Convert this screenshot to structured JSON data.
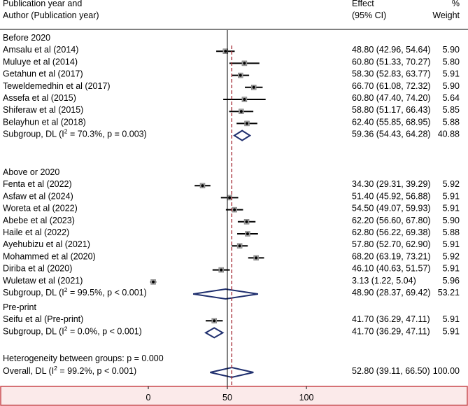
{
  "chart_data": {
    "type": "forest",
    "header": {
      "study_line1": "Publication year and",
      "study_line2": "Author (Publication year)",
      "effect_line1": "Effect",
      "effect_line2": "(95% CI)",
      "weight_line1": "%",
      "weight_line2": "Weight"
    },
    "xaxis": {
      "ticks": [
        0,
        50,
        100
      ],
      "null_line": 50,
      "overall_line": 52.8
    },
    "groups": [
      {
        "name": "Before 2020",
        "studies": [
          {
            "label": "Amsalu et al (2014)",
            "est": 48.8,
            "lo": 42.96,
            "hi": 54.64,
            "ci_text": "48.80 (42.96, 54.64)",
            "weight": "5.90"
          },
          {
            "label": "Muluye et al (2014)",
            "est": 60.8,
            "lo": 51.33,
            "hi": 70.27,
            "ci_text": "60.80 (51.33, 70.27)",
            "weight": "5.80"
          },
          {
            "label": "Getahun et al (2017)",
            "est": 58.3,
            "lo": 52.83,
            "hi": 63.77,
            "ci_text": "58.30 (52.83, 63.77)",
            "weight": "5.91"
          },
          {
            "label": "Teweldemedhin et al (2017)",
            "est": 66.7,
            "lo": 61.08,
            "hi": 72.32,
            "ci_text": "66.70 (61.08, 72.32)",
            "weight": "5.90"
          },
          {
            "label": "Assefa et al (2015)",
            "est": 60.8,
            "lo": 47.4,
            "hi": 74.2,
            "ci_text": "60.80 (47.40, 74.20)",
            "weight": "5.64"
          },
          {
            "label": "Shiferaw et al (2015)",
            "est": 58.8,
            "lo": 51.17,
            "hi": 66.43,
            "ci_text": "58.80 (51.17, 66.43)",
            "weight": "5.85"
          },
          {
            "label": "Belayhun et al (2018)",
            "est": 62.4,
            "lo": 55.85,
            "hi": 68.95,
            "ci_text": "62.40 (55.85, 68.95)",
            "weight": "5.88"
          }
        ],
        "subgroup": {
          "label_pre": "Subgroup, DL (I",
          "sup": "2",
          "label_post": " = 70.3%, p = 0.003)",
          "est": 59.36,
          "lo": 54.43,
          "hi": 64.28,
          "ci_text": "59.36 (54.43, 64.28)",
          "weight": "40.88"
        }
      },
      {
        "name": "Above or 2020",
        "studies": [
          {
            "label": "Fenta et al (2022)",
            "est": 34.3,
            "lo": 29.31,
            "hi": 39.29,
            "ci_text": "34.30 (29.31, 39.29)",
            "weight": "5.92"
          },
          {
            "label": "Asfaw et al (2024)",
            "est": 51.4,
            "lo": 45.92,
            "hi": 56.88,
            "ci_text": "51.40 (45.92, 56.88)",
            "weight": "5.91"
          },
          {
            "label": "Woreta et al (2022)",
            "est": 54.5,
            "lo": 49.07,
            "hi": 59.93,
            "ci_text": "54.50 (49.07, 59.93)",
            "weight": "5.91"
          },
          {
            "label": "Abebe et al (2023)",
            "est": 62.2,
            "lo": 56.6,
            "hi": 67.8,
            "ci_text": "62.20 (56.60, 67.80)",
            "weight": "5.90"
          },
          {
            "label": "Haile et al (2022)",
            "est": 62.8,
            "lo": 56.22,
            "hi": 69.38,
            "ci_text": "62.80 (56.22, 69.38)",
            "weight": "5.88"
          },
          {
            "label": "Ayehubizu et al (2021)",
            "est": 57.8,
            "lo": 52.7,
            "hi": 62.9,
            "ci_text": "57.80 (52.70, 62.90)",
            "weight": "5.91"
          },
          {
            "label": "Mohammed et al (2020)",
            "est": 68.2,
            "lo": 63.19,
            "hi": 73.21,
            "ci_text": "68.20 (63.19, 73.21)",
            "weight": "5.92"
          },
          {
            "label": "Diriba  et al (2020)",
            "est": 46.1,
            "lo": 40.63,
            "hi": 51.57,
            "ci_text": "46.10 (40.63, 51.57)",
            "weight": "5.91"
          },
          {
            "label": "Wuletaw  et al (2021)",
            "est": 3.13,
            "lo": 1.22,
            "hi": 5.04,
            "ci_text": "3.13 (1.22, 5.04)",
            "weight": "5.96"
          }
        ],
        "subgroup": {
          "label_pre": "Subgroup, DL (I",
          "sup": "2",
          "label_post": " = 99.5%, p < 0.001)",
          "est": 48.9,
          "lo": 28.37,
          "hi": 69.42,
          "ci_text": "48.90 (28.37, 69.42)",
          "weight": "53.21"
        }
      },
      {
        "name": "Pre-print",
        "studies": [
          {
            "label": "Seifu  et al (Pre-print)",
            "est": 41.7,
            "lo": 36.29,
            "hi": 47.11,
            "ci_text": "41.70 (36.29, 47.11)",
            "weight": "5.91"
          }
        ],
        "subgroup": {
          "label_pre": "Subgroup, DL (I",
          "sup": "2",
          "label_post": " = 0.0%, p < 0.001)",
          "est": 41.7,
          "lo": 36.29,
          "hi": 47.11,
          "ci_text": "41.70 (36.29, 47.11)",
          "weight": "5.91"
        }
      }
    ],
    "heterogeneity": "Heterogeneity between groups: p = 0.000",
    "overall": {
      "label_pre": "Overall, DL (I",
      "sup": "2",
      "label_post": " = 99.2%, p < 0.001)",
      "est": 52.8,
      "lo": 39.11,
      "hi": 66.5,
      "ci_text": "52.80 (39.11, 66.50)",
      "weight": "100.00"
    },
    "colors": {
      "diamond": "#1f2f6e",
      "overall_line": "#a8323a",
      "axis_box": "#c8474c",
      "axis_bg": "#fbeaea",
      "weight_box": "#a0a0a0"
    }
  }
}
